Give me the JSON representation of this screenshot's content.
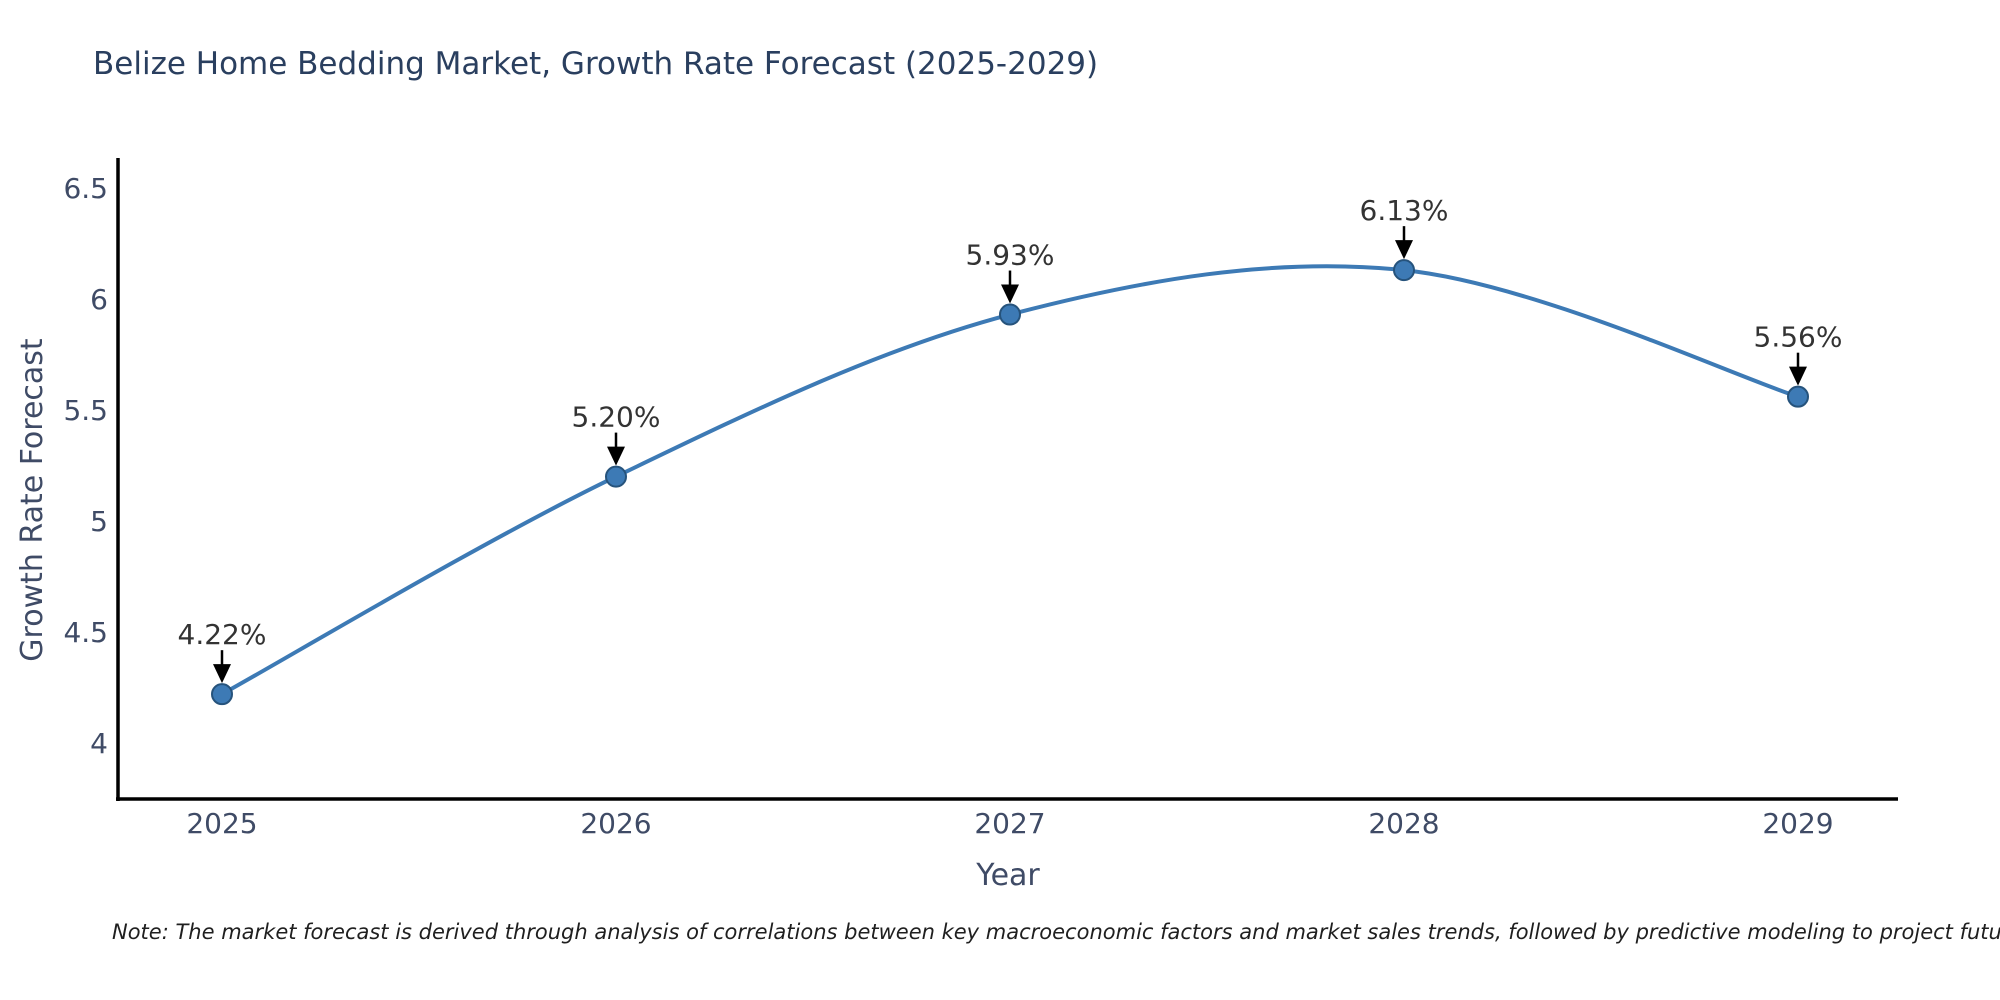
{
  "chart_data": {
    "type": "line",
    "title": "Belize Home Bedding Market, Growth Rate Forecast (2025-2029)",
    "xlabel": "Year",
    "ylabel": "Growth Rate Forecast",
    "categories": [
      "2025",
      "2026",
      "2027",
      "2028",
      "2029"
    ],
    "values": [
      4.22,
      5.2,
      5.93,
      6.13,
      5.56
    ],
    "point_labels": [
      "4.22%",
      "5.20%",
      "5.93%",
      "6.13%",
      "5.56%"
    ],
    "yticks": [
      4,
      4.5,
      5,
      5.5,
      6,
      6.5
    ],
    "ytick_labels": [
      "4",
      "4.5",
      "5",
      "5.5",
      "6",
      "6.5"
    ],
    "ylim": [
      3.73,
      6.63
    ],
    "grid": false,
    "line_style": "spline",
    "marker": "circle",
    "annotation_arrows": true,
    "legend": "none",
    "note": "Note: The market forecast is derived through analysis of correlations between key macroeconomic factors and market sales trends, followed by predictive modeling to project future sales",
    "colors": {
      "background": "#ffffff",
      "line": "#3d7ab5",
      "marker_fill": "#3d7ab5",
      "marker_edge": "#26537c",
      "axis_line": "#000000",
      "title_text": "#2a3f5f",
      "tick_text": "#3f4b66",
      "annotation_text": "#333333",
      "arrow": "#000000",
      "note_text": "#1f1f1f"
    }
  }
}
